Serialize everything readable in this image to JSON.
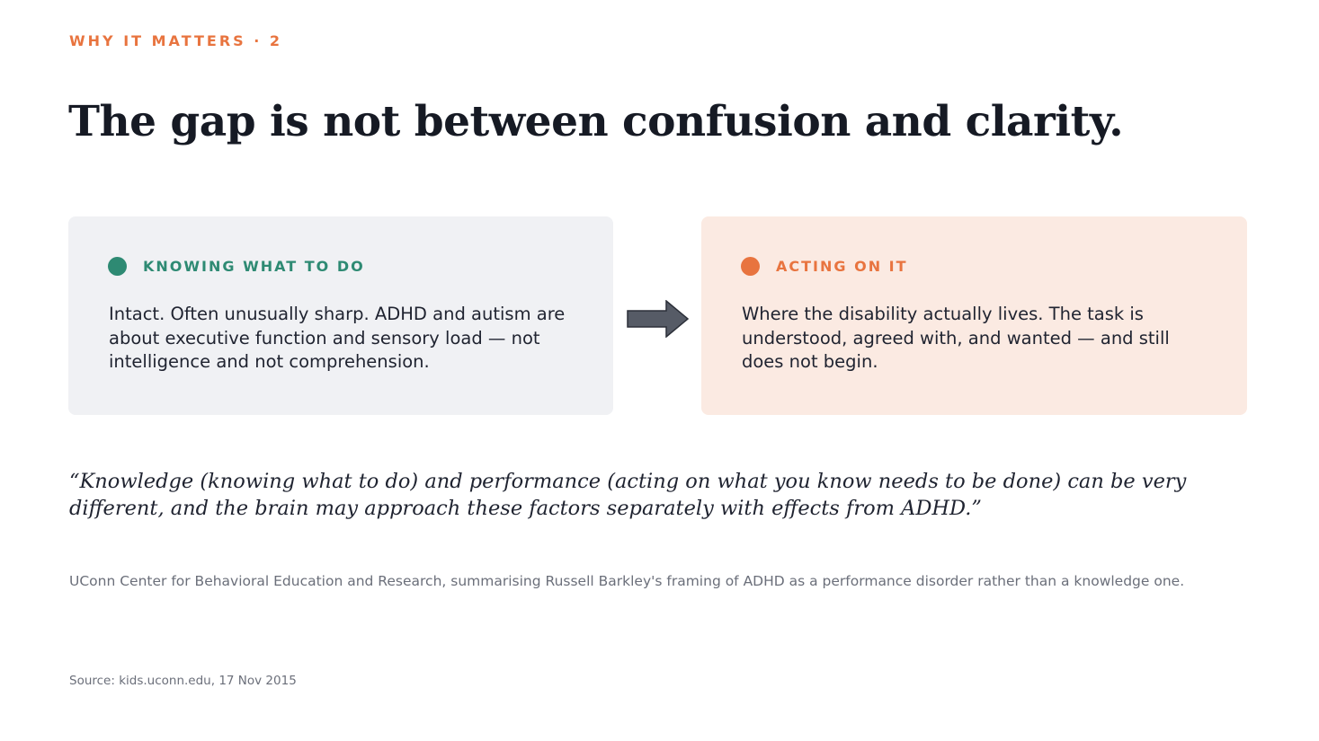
{
  "slide": {
    "eyebrow": "WHY IT MATTERS · 2",
    "title": "The gap is not between confusion and clarity."
  },
  "cards": {
    "left": {
      "label": "KNOWING WHAT TO DO",
      "body": "Intact. Often unusually sharp. ADHD and autism are about executive function and sensory load — not intelligence and not comprehension.",
      "accent": "#2e8a73"
    },
    "right": {
      "label": "ACTING ON IT",
      "body": "Where the disability actually lives. The task is understood, agreed with, and wanted — and still does not begin.",
      "accent": "#e8743f"
    },
    "connector_icon": "arrow-right-icon"
  },
  "quote": {
    "text": "“Knowledge (knowing what to do) and performance (acting on what you know needs to be done) can be very different, and the brain may approach these factors separately with effects from ADHD.”",
    "attribution": "UConn Center for Behavioral Education and Research, summarising Russell Barkley's framing of ADHD as a performance disorder rather than a knowledge one."
  },
  "footer": {
    "source": "Source: kids.uconn.edu, 17 Nov 2015"
  }
}
